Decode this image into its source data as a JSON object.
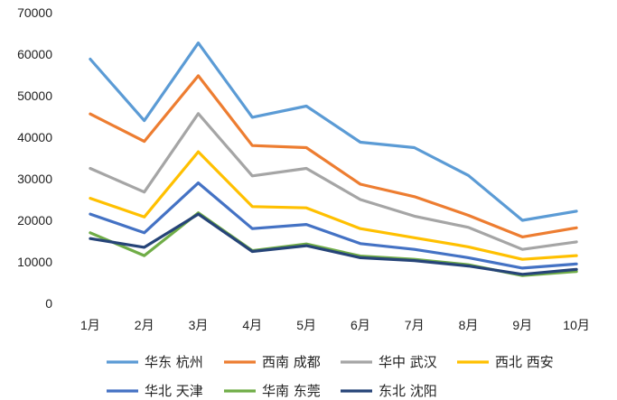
{
  "chart_data": {
    "type": "line",
    "title": "",
    "xlabel": "",
    "ylabel": "",
    "categories": [
      "1月",
      "2月",
      "3月",
      "4月",
      "5月",
      "6月",
      "7月",
      "8月",
      "9月",
      "10月"
    ],
    "ylim": [
      0,
      70000
    ],
    "yticks": [
      0,
      10000,
      20000,
      30000,
      40000,
      50000,
      60000,
      70000
    ],
    "grid": false,
    "legend_position": "bottom",
    "series": [
      {
        "name": "华东 杭州",
        "color": "#5b9bd5",
        "values": [
          58800,
          44000,
          62700,
          44800,
          47500,
          38800,
          37500,
          30800,
          20000,
          22200
        ]
      },
      {
        "name": "西南 成都",
        "color": "#ed7d31",
        "values": [
          45600,
          39000,
          54800,
          38000,
          37500,
          28700,
          25700,
          21200,
          16000,
          18200
        ]
      },
      {
        "name": "华中 武汉",
        "color": "#a5a5a5",
        "values": [
          32500,
          26800,
          45700,
          30700,
          32500,
          25000,
          21000,
          18300,
          13000,
          14800
        ]
      },
      {
        "name": "西北 西安",
        "color": "#ffc000",
        "values": [
          25300,
          20800,
          36500,
          23300,
          23000,
          18000,
          15800,
          13600,
          10600,
          11500
        ]
      },
      {
        "name": "华北 天津",
        "color": "#4472c4",
        "values": [
          21500,
          17000,
          29000,
          18000,
          19000,
          14400,
          13000,
          11000,
          8500,
          9500
        ]
      },
      {
        "name": "华南 东莞",
        "color": "#70ad47",
        "values": [
          17000,
          11500,
          21800,
          12700,
          14300,
          11400,
          10600,
          9300,
          6700,
          7700
        ]
      },
      {
        "name": "东北 沈阳",
        "color": "#264478",
        "values": [
          15600,
          13500,
          21500,
          12500,
          13900,
          11000,
          10300,
          9000,
          7000,
          8200
        ]
      }
    ]
  }
}
